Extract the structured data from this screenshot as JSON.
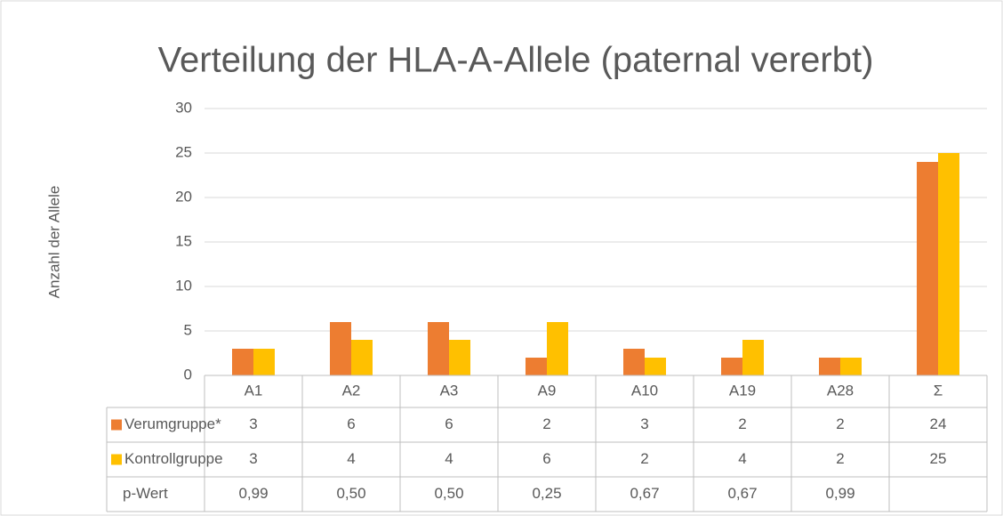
{
  "chart_data": {
    "type": "bar",
    "title": "Verteilung der HLA-A-Allele (paternal vererbt)",
    "y_label": "Anzahl der Allele",
    "categories": [
      "A1",
      "A2",
      "A3",
      "A9",
      "A10",
      "A19",
      "A28",
      "Σ"
    ],
    "series": [
      {
        "name": "Verumgruppe*",
        "color": "#ED7D31",
        "values": [
          3,
          6,
          6,
          2,
          3,
          2,
          2,
          24
        ]
      },
      {
        "name": "Kontrollgruppe",
        "color": "#FFC000",
        "values": [
          3,
          4,
          4,
          6,
          2,
          4,
          2,
          25
        ]
      }
    ],
    "p_values": {
      "name": "p-Wert",
      "values": [
        0.99,
        0.5,
        0.5,
        0.25,
        0.67,
        0.67,
        0.99,
        null
      ],
      "value_labels": [
        "0,99",
        "0,50",
        "0,50",
        "0,25",
        "0,67",
        "0,67",
        "0,99",
        null
      ]
    },
    "ylim": [
      0,
      30
    ],
    "yticks": [
      0,
      5,
      10,
      15,
      20,
      25,
      30
    ],
    "grid": true
  }
}
